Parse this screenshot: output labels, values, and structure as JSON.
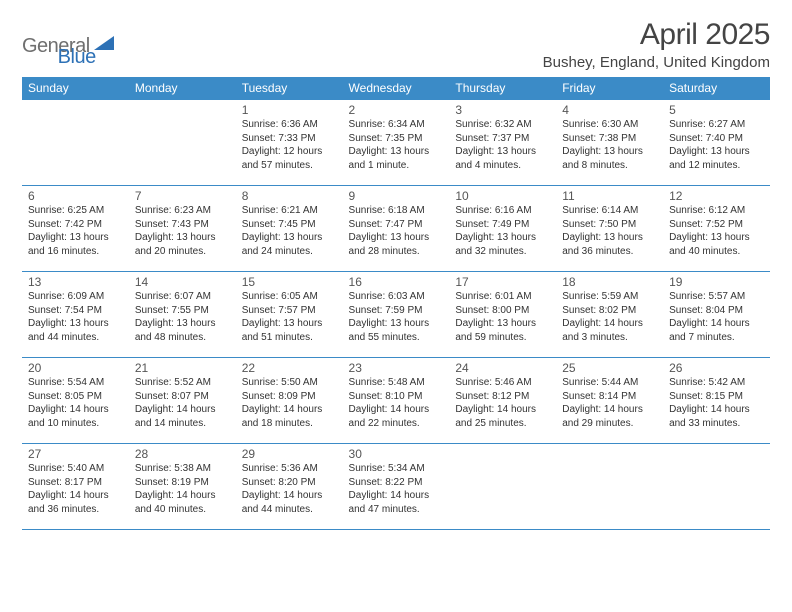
{
  "logo": {
    "text1": "General",
    "text2": "Blue"
  },
  "title": "April 2025",
  "location": "Bushey, England, United Kingdom",
  "day_headers": [
    "Sunday",
    "Monday",
    "Tuesday",
    "Wednesday",
    "Thursday",
    "Friday",
    "Saturday"
  ],
  "header_bg": "#3b8bc7",
  "divider_color": "#3b8bc7",
  "weeks": [
    [
      {
        "n": "",
        "sr": "",
        "ss": "",
        "dl": "",
        "empty": true
      },
      {
        "n": "",
        "sr": "",
        "ss": "",
        "dl": "",
        "empty": true
      },
      {
        "n": "1",
        "sr": "Sunrise: 6:36 AM",
        "ss": "Sunset: 7:33 PM",
        "dl": "Daylight: 12 hours and 57 minutes."
      },
      {
        "n": "2",
        "sr": "Sunrise: 6:34 AM",
        "ss": "Sunset: 7:35 PM",
        "dl": "Daylight: 13 hours and 1 minute."
      },
      {
        "n": "3",
        "sr": "Sunrise: 6:32 AM",
        "ss": "Sunset: 7:37 PM",
        "dl": "Daylight: 13 hours and 4 minutes."
      },
      {
        "n": "4",
        "sr": "Sunrise: 6:30 AM",
        "ss": "Sunset: 7:38 PM",
        "dl": "Daylight: 13 hours and 8 minutes."
      },
      {
        "n": "5",
        "sr": "Sunrise: 6:27 AM",
        "ss": "Sunset: 7:40 PM",
        "dl": "Daylight: 13 hours and 12 minutes."
      }
    ],
    [
      {
        "n": "6",
        "sr": "Sunrise: 6:25 AM",
        "ss": "Sunset: 7:42 PM",
        "dl": "Daylight: 13 hours and 16 minutes."
      },
      {
        "n": "7",
        "sr": "Sunrise: 6:23 AM",
        "ss": "Sunset: 7:43 PM",
        "dl": "Daylight: 13 hours and 20 minutes."
      },
      {
        "n": "8",
        "sr": "Sunrise: 6:21 AM",
        "ss": "Sunset: 7:45 PM",
        "dl": "Daylight: 13 hours and 24 minutes."
      },
      {
        "n": "9",
        "sr": "Sunrise: 6:18 AM",
        "ss": "Sunset: 7:47 PM",
        "dl": "Daylight: 13 hours and 28 minutes."
      },
      {
        "n": "10",
        "sr": "Sunrise: 6:16 AM",
        "ss": "Sunset: 7:49 PM",
        "dl": "Daylight: 13 hours and 32 minutes."
      },
      {
        "n": "11",
        "sr": "Sunrise: 6:14 AM",
        "ss": "Sunset: 7:50 PM",
        "dl": "Daylight: 13 hours and 36 minutes."
      },
      {
        "n": "12",
        "sr": "Sunrise: 6:12 AM",
        "ss": "Sunset: 7:52 PM",
        "dl": "Daylight: 13 hours and 40 minutes."
      }
    ],
    [
      {
        "n": "13",
        "sr": "Sunrise: 6:09 AM",
        "ss": "Sunset: 7:54 PM",
        "dl": "Daylight: 13 hours and 44 minutes."
      },
      {
        "n": "14",
        "sr": "Sunrise: 6:07 AM",
        "ss": "Sunset: 7:55 PM",
        "dl": "Daylight: 13 hours and 48 minutes."
      },
      {
        "n": "15",
        "sr": "Sunrise: 6:05 AM",
        "ss": "Sunset: 7:57 PM",
        "dl": "Daylight: 13 hours and 51 minutes."
      },
      {
        "n": "16",
        "sr": "Sunrise: 6:03 AM",
        "ss": "Sunset: 7:59 PM",
        "dl": "Daylight: 13 hours and 55 minutes."
      },
      {
        "n": "17",
        "sr": "Sunrise: 6:01 AM",
        "ss": "Sunset: 8:00 PM",
        "dl": "Daylight: 13 hours and 59 minutes."
      },
      {
        "n": "18",
        "sr": "Sunrise: 5:59 AM",
        "ss": "Sunset: 8:02 PM",
        "dl": "Daylight: 14 hours and 3 minutes."
      },
      {
        "n": "19",
        "sr": "Sunrise: 5:57 AM",
        "ss": "Sunset: 8:04 PM",
        "dl": "Daylight: 14 hours and 7 minutes."
      }
    ],
    [
      {
        "n": "20",
        "sr": "Sunrise: 5:54 AM",
        "ss": "Sunset: 8:05 PM",
        "dl": "Daylight: 14 hours and 10 minutes."
      },
      {
        "n": "21",
        "sr": "Sunrise: 5:52 AM",
        "ss": "Sunset: 8:07 PM",
        "dl": "Daylight: 14 hours and 14 minutes."
      },
      {
        "n": "22",
        "sr": "Sunrise: 5:50 AM",
        "ss": "Sunset: 8:09 PM",
        "dl": "Daylight: 14 hours and 18 minutes."
      },
      {
        "n": "23",
        "sr": "Sunrise: 5:48 AM",
        "ss": "Sunset: 8:10 PM",
        "dl": "Daylight: 14 hours and 22 minutes."
      },
      {
        "n": "24",
        "sr": "Sunrise: 5:46 AM",
        "ss": "Sunset: 8:12 PM",
        "dl": "Daylight: 14 hours and 25 minutes."
      },
      {
        "n": "25",
        "sr": "Sunrise: 5:44 AM",
        "ss": "Sunset: 8:14 PM",
        "dl": "Daylight: 14 hours and 29 minutes."
      },
      {
        "n": "26",
        "sr": "Sunrise: 5:42 AM",
        "ss": "Sunset: 8:15 PM",
        "dl": "Daylight: 14 hours and 33 minutes."
      }
    ],
    [
      {
        "n": "27",
        "sr": "Sunrise: 5:40 AM",
        "ss": "Sunset: 8:17 PM",
        "dl": "Daylight: 14 hours and 36 minutes."
      },
      {
        "n": "28",
        "sr": "Sunrise: 5:38 AM",
        "ss": "Sunset: 8:19 PM",
        "dl": "Daylight: 14 hours and 40 minutes."
      },
      {
        "n": "29",
        "sr": "Sunrise: 5:36 AM",
        "ss": "Sunset: 8:20 PM",
        "dl": "Daylight: 14 hours and 44 minutes."
      },
      {
        "n": "30",
        "sr": "Sunrise: 5:34 AM",
        "ss": "Sunset: 8:22 PM",
        "dl": "Daylight: 14 hours and 47 minutes."
      },
      {
        "n": "",
        "sr": "",
        "ss": "",
        "dl": "",
        "empty": true
      },
      {
        "n": "",
        "sr": "",
        "ss": "",
        "dl": "",
        "empty": true
      },
      {
        "n": "",
        "sr": "",
        "ss": "",
        "dl": "",
        "empty": true
      }
    ]
  ]
}
